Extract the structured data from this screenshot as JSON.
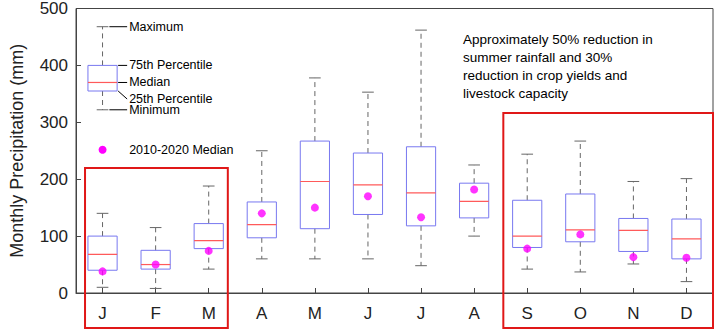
{
  "chart_data": {
    "type": "boxplot",
    "ylabel": "Monthly Precipitation (mm)",
    "categories": [
      "J",
      "F",
      "M",
      "A",
      "M",
      "J",
      "J",
      "A",
      "S",
      "O",
      "N",
      "D"
    ],
    "series": [
      {
        "type": "boxplot",
        "color": "#7878f0",
        "values": [
          [
            10,
            40,
            68,
            100,
            140
          ],
          [
            8,
            42,
            50,
            75,
            115
          ],
          [
            42,
            78,
            92,
            122,
            188
          ],
          [
            60,
            97,
            120,
            160,
            250
          ],
          [
            60,
            113,
            196,
            267,
            378
          ],
          [
            60,
            138,
            190,
            246,
            353
          ],
          [
            48,
            118,
            176,
            257,
            462
          ],
          [
            100,
            132,
            161,
            193,
            225
          ],
          [
            42,
            80,
            100,
            163,
            244
          ],
          [
            37,
            90,
            111,
            174,
            267
          ],
          [
            51,
            73,
            110,
            131,
            196
          ],
          [
            20,
            60,
            95,
            130,
            201
          ]
        ]
      },
      {
        "type": "scatter",
        "name": "2010-2020 Median",
        "color": "#ff00ff",
        "marker": "circle",
        "values": [
          38,
          50,
          74,
          140,
          150,
          170,
          133,
          182,
          78,
          103,
          63,
          62
        ]
      }
    ],
    "key": {
      "values": [
        322,
        355,
        370,
        400,
        468
      ],
      "labels": [
        "Minimum",
        "25th Percentile",
        "Median",
        "75th Percentile",
        "Maximum"
      ]
    },
    "annotations": [
      "Approximately 50% reduction in",
      "summer rainfall and 30%",
      "reduction in crop yields and",
      "livestock capacity"
    ],
    "ylim": [
      0,
      500
    ],
    "yticks": [
      0,
      100,
      200,
      300,
      400,
      500
    ],
    "grid": false
  }
}
